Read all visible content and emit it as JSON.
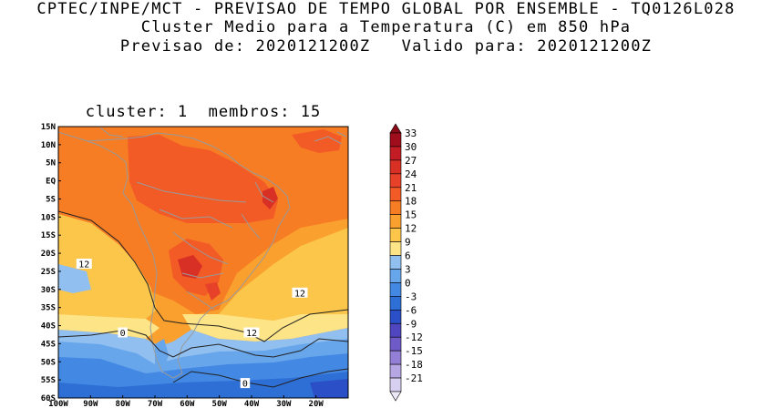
{
  "title": {
    "line1": "CPTEC/INPE/MCT - PREVISAO DE TEMPO GLOBAL POR ENSEMBLE - TQ0126L028",
    "line2": "Cluster Medio para a Temperatura (C) em 850 hPa",
    "line3": "Previsao de: 2020121200Z   Valido para: 2020121200Z"
  },
  "panel": {
    "title": "cluster: 1  membros: 15"
  },
  "map": {
    "lat_labels": [
      "15N",
      "10N",
      "5N",
      "EQ",
      "5S",
      "10S",
      "15S",
      "20S",
      "25S",
      "30S",
      "35S",
      "40S",
      "45S",
      "50S",
      "55S",
      "60S"
    ],
    "lon_labels": [
      "100W",
      "90W",
      "80W",
      "70W",
      "60W",
      "50W",
      "40W",
      "30W",
      "20W"
    ],
    "contour_labels": [
      {
        "text": "12",
        "lon": -92,
        "lat": -23
      },
      {
        "text": "12",
        "lon": -40,
        "lat": -42
      },
      {
        "text": "12",
        "lon": -25,
        "lat": -31
      },
      {
        "text": "0",
        "lon": -80,
        "lat": -42
      },
      {
        "text": "0",
        "lon": -42,
        "lat": -56
      }
    ]
  },
  "colorbar": {
    "labels": [
      "33",
      "30",
      "27",
      "24",
      "21",
      "18",
      "15",
      "12",
      "9",
      "6",
      "3",
      "0",
      "-3",
      "-6",
      "-9",
      "-12",
      "-15",
      "-18",
      "-21"
    ],
    "colors": [
      "#a00d1c",
      "#c41c24",
      "#d93026",
      "#e8412a",
      "#f25a26",
      "#f77d24",
      "#f9a02e",
      "#fcc64a",
      "#fde487",
      "#90bff0",
      "#68a6ec",
      "#4388e3",
      "#2e6fd6",
      "#2b4fc6",
      "#4f46c0",
      "#6f5bc8",
      "#9380d6",
      "#b6a6e4",
      "#d8d0f0"
    ]
  }
}
